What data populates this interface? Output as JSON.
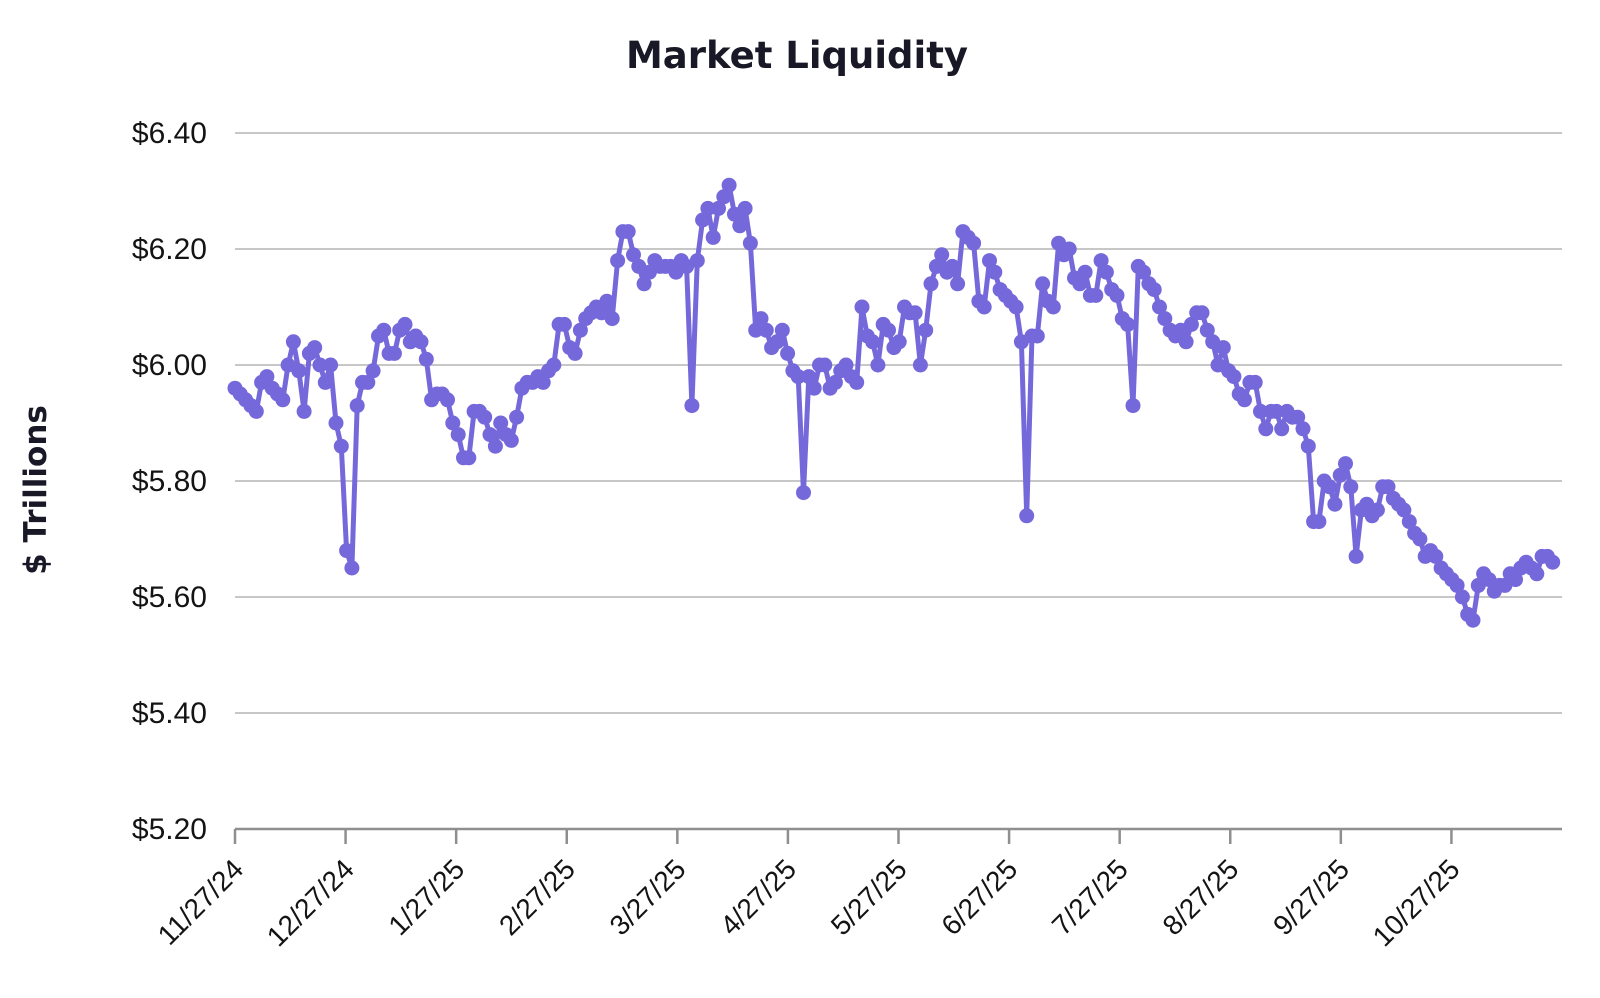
{
  "chart_data": {
    "type": "line",
    "title": "Market Liquidity",
    "ylabel": "$ Trillions",
    "xlabel": "",
    "legend": "none",
    "grid": "horizontal",
    "line_color": "#7568da",
    "marker_color": "#7568da",
    "grid_color": "#c7c7c7",
    "axis_color": "#8f8f8f",
    "text_color": "#141414",
    "title_color": "#181826",
    "marker": "circle",
    "ylim": [
      5.2,
      6.4
    ],
    "y_ticks": [
      6.4,
      6.2,
      6.0,
      5.8,
      5.6,
      5.4,
      5.2
    ],
    "y_tick_labels": [
      "$6.40",
      "$6.20",
      "$6.00",
      "$5.80",
      "$5.60",
      "$5.40",
      "$5.20"
    ],
    "x_tick_labels": [
      "11/27/24",
      "12/27/24",
      "1/27/25",
      "2/27/25",
      "3/27/25",
      "4/27/25",
      "5/27/25",
      "6/27/25",
      "7/27/25",
      "8/27/25",
      "9/27/25",
      "10/27/25"
    ],
    "series_end_frac": 0.993,
    "series": [
      {
        "name": "Market Liquidity ($ Trillions)",
        "values": [
          5.96,
          5.95,
          5.94,
          5.93,
          5.92,
          5.97,
          5.98,
          5.96,
          5.95,
          5.94,
          6.0,
          6.04,
          5.99,
          5.92,
          6.02,
          6.03,
          6.0,
          5.97,
          6.0,
          5.9,
          5.86,
          5.68,
          5.65,
          5.93,
          5.97,
          5.97,
          5.99,
          6.05,
          6.06,
          6.02,
          6.02,
          6.06,
          6.07,
          6.04,
          6.05,
          6.04,
          6.01,
          5.94,
          5.95,
          5.95,
          5.94,
          5.9,
          5.88,
          5.84,
          5.84,
          5.92,
          5.92,
          5.91,
          5.88,
          5.86,
          5.9,
          5.88,
          5.87,
          5.91,
          5.96,
          5.97,
          5.97,
          5.98,
          5.97,
          5.99,
          6.0,
          6.07,
          6.07,
          6.03,
          6.02,
          6.06,
          6.08,
          6.09,
          6.1,
          6.09,
          6.11,
          6.08,
          6.18,
          6.23,
          6.23,
          6.19,
          6.17,
          6.14,
          6.16,
          6.18,
          6.17,
          6.17,
          6.17,
          6.16,
          6.18,
          6.17,
          5.93,
          6.18,
          6.25,
          6.27,
          6.22,
          6.27,
          6.29,
          6.31,
          6.26,
          6.24,
          6.27,
          6.21,
          6.06,
          6.08,
          6.06,
          6.03,
          6.04,
          6.06,
          6.02,
          5.99,
          5.98,
          5.78,
          5.98,
          5.96,
          6.0,
          6.0,
          5.96,
          5.97,
          5.99,
          6.0,
          5.98,
          5.97,
          6.1,
          6.05,
          6.04,
          6.0,
          6.07,
          6.06,
          6.03,
          6.04,
          6.1,
          6.09,
          6.09,
          6.0,
          6.06,
          6.14,
          6.17,
          6.19,
          6.16,
          6.17,
          6.14,
          6.23,
          6.22,
          6.21,
          6.11,
          6.1,
          6.18,
          6.16,
          6.13,
          6.12,
          6.11,
          6.1,
          6.04,
          5.74,
          6.05,
          6.05,
          6.14,
          6.11,
          6.1,
          6.21,
          6.19,
          6.2,
          6.15,
          6.14,
          6.16,
          6.12,
          6.12,
          6.18,
          6.16,
          6.13,
          6.12,
          6.08,
          6.07,
          5.93,
          6.17,
          6.16,
          6.14,
          6.13,
          6.1,
          6.08,
          6.06,
          6.05,
          6.06,
          6.04,
          6.07,
          6.09,
          6.09,
          6.06,
          6.04,
          6.0,
          6.03,
          5.99,
          5.98,
          5.95,
          5.94,
          5.97,
          5.97,
          5.92,
          5.89,
          5.92,
          5.92,
          5.89,
          5.92,
          5.91,
          5.91,
          5.89,
          5.86,
          5.73,
          5.73,
          5.8,
          5.79,
          5.76,
          5.81,
          5.83,
          5.79,
          5.67,
          5.75,
          5.76,
          5.74,
          5.75,
          5.79,
          5.79,
          5.77,
          5.76,
          5.75,
          5.73,
          5.71,
          5.7,
          5.67,
          5.68,
          5.67,
          5.65,
          5.64,
          5.63,
          5.62,
          5.6,
          5.57,
          5.56,
          5.62,
          5.64,
          5.63,
          5.61,
          5.62,
          5.62,
          5.64,
          5.63,
          5.65,
          5.66,
          5.65,
          5.64,
          5.67,
          5.67,
          5.66
        ]
      }
    ]
  }
}
